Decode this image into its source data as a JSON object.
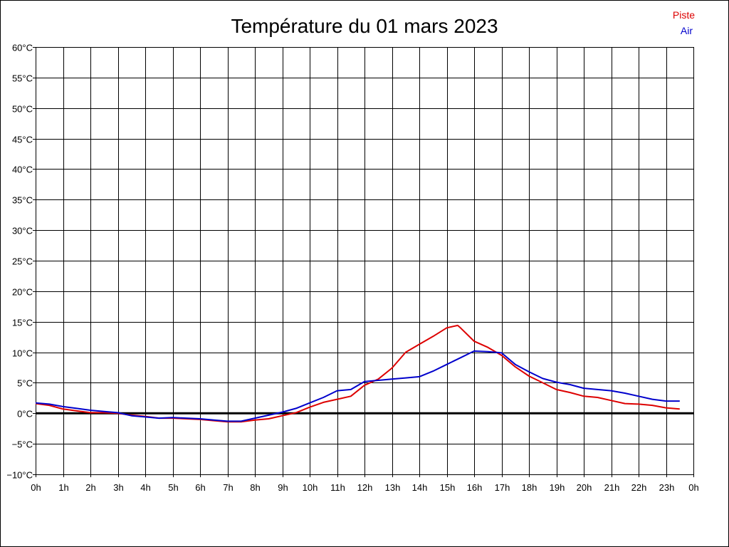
{
  "chart_data": {
    "type": "line",
    "title": "Température du 01 mars 2023",
    "xlabel": "",
    "ylabel": "",
    "x_tick_labels": [
      "0h",
      "1h",
      "2h",
      "3h",
      "4h",
      "5h",
      "6h",
      "7h",
      "8h",
      "9h",
      "10h",
      "11h",
      "12h",
      "13h",
      "14h",
      "15h",
      "16h",
      "17h",
      "18h",
      "19h",
      "20h",
      "21h",
      "22h",
      "23h",
      "0h"
    ],
    "y_tick_labels": [
      "60°C",
      "55°C",
      "50°C",
      "45°C",
      "40°C",
      "35°C",
      "30°C",
      "25°C",
      "20°C",
      "15°C",
      "10°C",
      "5°C",
      "0°C",
      "−5°C",
      "−10°C"
    ],
    "xlim": [
      0,
      24
    ],
    "ylim": [
      -10,
      60
    ],
    "grid": true,
    "legend_position": "top-right",
    "series": [
      {
        "name": "Piste",
        "color": "#dd0000",
        "x": [
          0.0,
          0.5,
          1.0,
          1.5,
          2.0,
          2.5,
          3.0,
          3.5,
          4.0,
          4.5,
          5.0,
          5.5,
          6.0,
          6.5,
          7.0,
          7.5,
          8.0,
          8.5,
          9.0,
          9.5,
          10.0,
          10.5,
          11.0,
          11.5,
          12.0,
          12.5,
          13.0,
          13.5,
          14.0,
          14.5,
          15.0,
          15.4,
          15.5,
          16.0,
          16.5,
          17.0,
          17.5,
          18.0,
          18.5,
          19.0,
          19.5,
          20.0,
          20.5,
          21.0,
          21.5,
          22.0,
          22.5,
          23.0,
          23.5
        ],
        "y": [
          1.6,
          1.3,
          0.7,
          0.4,
          0.1,
          0.1,
          0.0,
          -0.3,
          -0.5,
          -0.8,
          -0.8,
          -0.9,
          -1.0,
          -1.2,
          -1.4,
          -1.4,
          -1.1,
          -0.9,
          -0.4,
          0.1,
          1.0,
          1.8,
          2.3,
          2.8,
          4.6,
          5.6,
          7.4,
          10.0,
          11.3,
          12.6,
          14.0,
          14.4,
          14.0,
          11.8,
          10.8,
          9.5,
          7.6,
          6.1,
          5.0,
          3.9,
          3.4,
          2.8,
          2.6,
          2.1,
          1.6,
          1.5,
          1.3,
          0.9,
          0.7
        ]
      },
      {
        "name": "Air",
        "color": "#0000cc",
        "x": [
          0.0,
          0.5,
          1.0,
          1.5,
          2.0,
          2.5,
          3.0,
          3.5,
          4.0,
          4.5,
          5.0,
          5.5,
          6.0,
          6.5,
          7.0,
          7.5,
          8.0,
          8.5,
          9.0,
          9.5,
          10.0,
          10.5,
          11.0,
          11.5,
          12.0,
          12.5,
          13.0,
          13.5,
          14.0,
          14.5,
          15.0,
          15.5,
          16.0,
          16.5,
          17.0,
          17.5,
          18.0,
          18.5,
          19.0,
          19.5,
          20.0,
          20.5,
          21.0,
          21.5,
          22.0,
          22.5,
          23.0,
          23.5
        ],
        "y": [
          1.7,
          1.5,
          1.1,
          0.8,
          0.5,
          0.3,
          0.1,
          -0.4,
          -0.6,
          -0.8,
          -0.7,
          -0.8,
          -0.9,
          -1.1,
          -1.3,
          -1.3,
          -0.8,
          -0.3,
          0.2,
          0.8,
          1.7,
          2.6,
          3.7,
          3.9,
          5.2,
          5.4,
          5.6,
          5.8,
          6.0,
          6.9,
          8.0,
          9.1,
          10.2,
          10.1,
          9.9,
          8.0,
          6.8,
          5.7,
          5.1,
          4.7,
          4.1,
          3.9,
          3.7,
          3.3,
          2.8,
          2.3,
          2.0,
          2.0
        ]
      }
    ]
  }
}
